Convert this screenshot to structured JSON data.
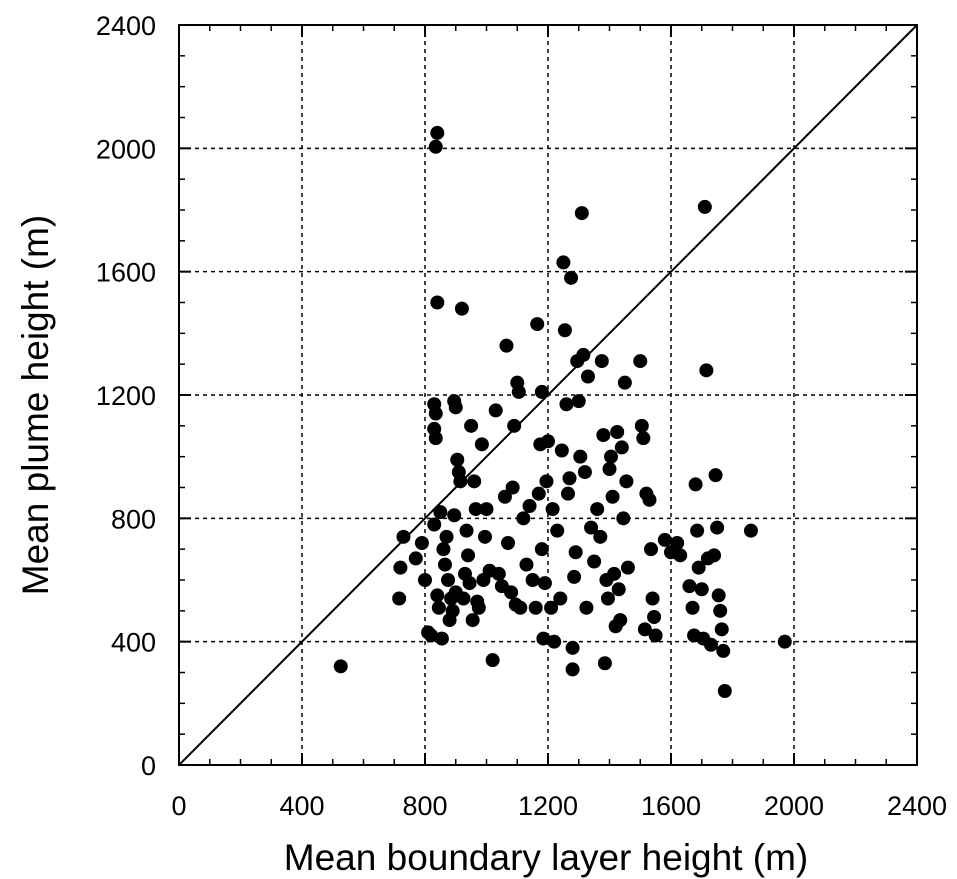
{
  "chart_data": {
    "type": "scatter",
    "title": "",
    "xlabel": "Mean boundary layer height (m)",
    "ylabel": "Mean plume height (m)",
    "xlim": [
      0,
      2400
    ],
    "ylim": [
      0,
      2400
    ],
    "xticks": [
      0,
      400,
      800,
      1200,
      1600,
      2000,
      2400
    ],
    "yticks": [
      0,
      400,
      800,
      1200,
      1600,
      2000,
      2400
    ],
    "xtick_labels": [
      "0",
      "400",
      "800",
      "1200",
      "1600",
      "2000",
      "2400"
    ],
    "ytick_labels": [
      "0",
      "400",
      "800",
      "1200",
      "1600",
      "2000",
      "2400"
    ],
    "grid": true,
    "reference_line": "1:1",
    "marker_color": "#000000",
    "points": [
      [
        526,
        320
      ],
      [
        716,
        540
      ],
      [
        720,
        640
      ],
      [
        730,
        740
      ],
      [
        770,
        670
      ],
      [
        790,
        720
      ],
      [
        800,
        600
      ],
      [
        810,
        430
      ],
      [
        820,
        420
      ],
      [
        830,
        1170
      ],
      [
        835,
        1140
      ],
      [
        830,
        1090
      ],
      [
        835,
        1060
      ],
      [
        830,
        780
      ],
      [
        840,
        2050
      ],
      [
        835,
        2005
      ],
      [
        840,
        1500
      ],
      [
        840,
        550
      ],
      [
        845,
        510
      ],
      [
        850,
        820
      ],
      [
        855,
        410
      ],
      [
        860,
        700
      ],
      [
        865,
        650
      ],
      [
        870,
        740
      ],
      [
        875,
        600
      ],
      [
        880,
        470
      ],
      [
        885,
        540
      ],
      [
        890,
        500
      ],
      [
        895,
        810
      ],
      [
        900,
        560
      ],
      [
        895,
        1180
      ],
      [
        900,
        1160
      ],
      [
        905,
        990
      ],
      [
        910,
        950
      ],
      [
        915,
        920
      ],
      [
        920,
        1480
      ],
      [
        925,
        540
      ],
      [
        930,
        620
      ],
      [
        935,
        760
      ],
      [
        940,
        680
      ],
      [
        945,
        590
      ],
      [
        950,
        1100
      ],
      [
        955,
        470
      ],
      [
        960,
        920
      ],
      [
        965,
        830
      ],
      [
        970,
        530
      ],
      [
        975,
        510
      ],
      [
        985,
        1040
      ],
      [
        990,
        600
      ],
      [
        995,
        740
      ],
      [
        1000,
        830
      ],
      [
        1010,
        630
      ],
      [
        1020,
        340
      ],
      [
        1030,
        1150
      ],
      [
        1040,
        620
      ],
      [
        1050,
        580
      ],
      [
        1060,
        870
      ],
      [
        1065,
        1360
      ],
      [
        1070,
        720
      ],
      [
        1080,
        560
      ],
      [
        1085,
        900
      ],
      [
        1090,
        1100
      ],
      [
        1095,
        520
      ],
      [
        1100,
        1240
      ],
      [
        1105,
        1210
      ],
      [
        1110,
        510
      ],
      [
        1120,
        800
      ],
      [
        1130,
        650
      ],
      [
        1140,
        840
      ],
      [
        1150,
        600
      ],
      [
        1160,
        510
      ],
      [
        1165,
        1430
      ],
      [
        1170,
        880
      ],
      [
        1175,
        1040
      ],
      [
        1180,
        1210
      ],
      [
        1180,
        700
      ],
      [
        1185,
        410
      ],
      [
        1190,
        590
      ],
      [
        1195,
        920
      ],
      [
        1200,
        1050
      ],
      [
        1210,
        510
      ],
      [
        1215,
        830
      ],
      [
        1220,
        400
      ],
      [
        1230,
        760
      ],
      [
        1240,
        540
      ],
      [
        1245,
        1020
      ],
      [
        1250,
        1630
      ],
      [
        1255,
        1410
      ],
      [
        1260,
        1170
      ],
      [
        1265,
        880
      ],
      [
        1270,
        930
      ],
      [
        1275,
        1580
      ],
      [
        1280,
        310
      ],
      [
        1280,
        380
      ],
      [
        1285,
        610
      ],
      [
        1290,
        690
      ],
      [
        1295,
        1310
      ],
      [
        1300,
        1180
      ],
      [
        1305,
        1000
      ],
      [
        1310,
        1790
      ],
      [
        1315,
        1330
      ],
      [
        1320,
        950
      ],
      [
        1325,
        510
      ],
      [
        1330,
        1260
      ],
      [
        1340,
        770
      ],
      [
        1350,
        660
      ],
      [
        1360,
        830
      ],
      [
        1370,
        740
      ],
      [
        1375,
        1310
      ],
      [
        1380,
        1070
      ],
      [
        1385,
        330
      ],
      [
        1390,
        600
      ],
      [
        1395,
        540
      ],
      [
        1400,
        960
      ],
      [
        1405,
        1000
      ],
      [
        1410,
        870
      ],
      [
        1415,
        620
      ],
      [
        1420,
        450
      ],
      [
        1425,
        1080
      ],
      [
        1430,
        570
      ],
      [
        1435,
        470
      ],
      [
        1440,
        1030
      ],
      [
        1445,
        800
      ],
      [
        1450,
        1240
      ],
      [
        1455,
        920
      ],
      [
        1460,
        640
      ],
      [
        1500,
        1310
      ],
      [
        1505,
        1100
      ],
      [
        1510,
        1060
      ],
      [
        1515,
        440
      ],
      [
        1520,
        880
      ],
      [
        1530,
        860
      ],
      [
        1535,
        700
      ],
      [
        1540,
        540
      ],
      [
        1545,
        480
      ],
      [
        1550,
        420
      ],
      [
        1580,
        730
      ],
      [
        1600,
        690
      ],
      [
        1620,
        720
      ],
      [
        1630,
        680
      ],
      [
        1660,
        580
      ],
      [
        1670,
        510
      ],
      [
        1675,
        420
      ],
      [
        1680,
        910
      ],
      [
        1685,
        760
      ],
      [
        1690,
        640
      ],
      [
        1700,
        570
      ],
      [
        1705,
        410
      ],
      [
        1710,
        1810
      ],
      [
        1715,
        1280
      ],
      [
        1720,
        670
      ],
      [
        1730,
        390
      ],
      [
        1740,
        680
      ],
      [
        1745,
        940
      ],
      [
        1750,
        770
      ],
      [
        1755,
        550
      ],
      [
        1760,
        500
      ],
      [
        1765,
        440
      ],
      [
        1770,
        370
      ],
      [
        1775,
        240
      ],
      [
        1860,
        760
      ],
      [
        1970,
        400
      ]
    ]
  }
}
